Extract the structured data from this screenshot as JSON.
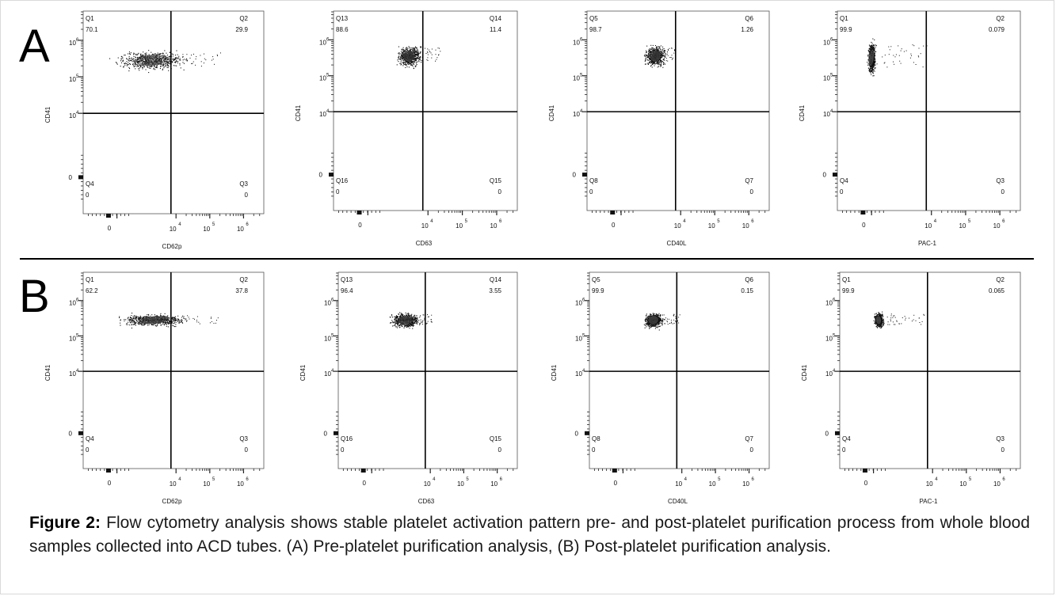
{
  "caption": {
    "label": "Figure 2:",
    "text": "Flow cytometry analysis shows stable platelet activation pattern pre- and post-platelet purification process from whole blood samples collected into ACD tubes. (A) Pre-platelet purification analysis, (B) Post-platelet purification analysis."
  },
  "rows": [
    {
      "label": "A"
    },
    {
      "label": "B"
    }
  ],
  "chart_data": [
    {
      "type": "scatter",
      "panel": "A",
      "xlabel": "CD62p",
      "ylabel": "CD41",
      "x_gate": 3.6,
      "y_gate": 3.75,
      "yticks": [
        "0",
        "10",
        "10",
        "10"
      ],
      "xticks": [
        "0",
        "10",
        "10",
        "10"
      ],
      "tick_exp": [
        "4",
        "5",
        "6"
      ],
      "quadrants": [
        {
          "name": "Q1",
          "value": "70.1"
        },
        {
          "name": "Q2",
          "value": "29.9"
        },
        {
          "name": "Q3",
          "value": "0"
        },
        {
          "name": "Q4",
          "value": "0"
        }
      ],
      "population": {
        "x": 3.0,
        "y": 5.2,
        "sx": 1.1,
        "sy": 0.15,
        "spread_x": 2.1
      }
    },
    {
      "type": "scatter",
      "panel": "A",
      "xlabel": "CD63",
      "ylabel": "CD41",
      "x_gate": 3.6,
      "y_gate": 3.75,
      "yticks": [
        "0",
        "10",
        "10",
        "10"
      ],
      "xticks": [
        "0",
        "10",
        "10",
        "10"
      ],
      "tick_exp": [
        "4",
        "5",
        "6"
      ],
      "quadrants": [
        {
          "name": "Q13",
          "value": "88.6"
        },
        {
          "name": "Q14",
          "value": "11.4"
        },
        {
          "name": "Q15",
          "value": "0"
        },
        {
          "name": "Q16",
          "value": "0"
        }
      ],
      "population": {
        "x": 3.2,
        "y": 5.3,
        "sx": 0.35,
        "sy": 0.16,
        "spread_x": 0.9
      }
    },
    {
      "type": "scatter",
      "panel": "A",
      "xlabel": "CD40L",
      "ylabel": "CD41",
      "x_gate": 3.6,
      "y_gate": 3.75,
      "yticks": [
        "0",
        "10",
        "10",
        "10"
      ],
      "xticks": [
        "0",
        "10",
        "10",
        "10"
      ],
      "tick_exp": [
        "4",
        "5",
        "6"
      ],
      "quadrants": [
        {
          "name": "Q5",
          "value": "98.7"
        },
        {
          "name": "Q6",
          "value": "1.26"
        },
        {
          "name": "Q7",
          "value": "0"
        },
        {
          "name": "Q8",
          "value": "0"
        }
      ],
      "population": {
        "x": 3.0,
        "y": 5.3,
        "sx": 0.32,
        "sy": 0.16,
        "spread_x": 0.6
      }
    },
    {
      "type": "scatter",
      "panel": "A",
      "xlabel": "PAC-1",
      "ylabel": "CD41",
      "x_gate": 3.6,
      "y_gate": 3.75,
      "yticks": [
        "0",
        "10",
        "10",
        "10"
      ],
      "xticks": [
        "0",
        "10",
        "10",
        "10"
      ],
      "tick_exp": [
        "4",
        "5",
        "6"
      ],
      "quadrants": [
        {
          "name": "Q1",
          "value": "99.9"
        },
        {
          "name": "Q2",
          "value": "0.079"
        },
        {
          "name": "Q3",
          "value": "0"
        },
        {
          "name": "Q4",
          "value": "0"
        }
      ],
      "population": {
        "x": 2.0,
        "y": 5.25,
        "sx": 0.12,
        "sy": 0.25,
        "spread_x": 1.7
      }
    },
    {
      "type": "scatter",
      "panel": "B",
      "xlabel": "CD62p",
      "ylabel": "CD41",
      "x_gate": 3.6,
      "y_gate": 3.75,
      "yticks": [
        "0",
        "10",
        "10",
        "10"
      ],
      "xticks": [
        "0",
        "10",
        "10",
        "10"
      ],
      "tick_exp": [
        "4",
        "5",
        "6"
      ],
      "quadrants": [
        {
          "name": "Q1",
          "value": "62.2"
        },
        {
          "name": "Q2",
          "value": "37.8"
        },
        {
          "name": "Q3",
          "value": "0"
        },
        {
          "name": "Q4",
          "value": "0"
        }
      ],
      "population": {
        "x": 3.1,
        "y": 5.2,
        "sx": 1.0,
        "sy": 0.1,
        "spread_x": 1.9
      }
    },
    {
      "type": "scatter",
      "panel": "B",
      "xlabel": "CD63",
      "ylabel": "CD41",
      "x_gate": 3.6,
      "y_gate": 3.75,
      "yticks": [
        "0",
        "10",
        "10",
        "10"
      ],
      "xticks": [
        "0",
        "10",
        "10",
        "10"
      ],
      "tick_exp": [
        "4",
        "5",
        "6"
      ],
      "quadrants": [
        {
          "name": "Q13",
          "value": "96.4"
        },
        {
          "name": "Q14",
          "value": "3.55"
        },
        {
          "name": "Q15",
          "value": "0"
        },
        {
          "name": "Q16",
          "value": "0"
        }
      ],
      "population": {
        "x": 3.0,
        "y": 5.2,
        "sx": 0.45,
        "sy": 0.12,
        "spread_x": 0.8
      }
    },
    {
      "type": "scatter",
      "panel": "B",
      "xlabel": "CD40L",
      "ylabel": "CD41",
      "x_gate": 3.6,
      "y_gate": 3.75,
      "yticks": [
        "0",
        "10",
        "10",
        "10"
      ],
      "xticks": [
        "0",
        "10",
        "10",
        "10"
      ],
      "tick_exp": [
        "4",
        "5",
        "6"
      ],
      "quadrants": [
        {
          "name": "Q5",
          "value": "99.9"
        },
        {
          "name": "Q6",
          "value": "0.15"
        },
        {
          "name": "Q7",
          "value": "0"
        },
        {
          "name": "Q8",
          "value": "0"
        }
      ],
      "population": {
        "x": 2.9,
        "y": 5.2,
        "sx": 0.3,
        "sy": 0.12,
        "spread_x": 0.8
      }
    },
    {
      "type": "scatter",
      "panel": "B",
      "xlabel": "PAC-1",
      "ylabel": "CD41",
      "x_gate": 3.6,
      "y_gate": 3.75,
      "yticks": [
        "0",
        "10",
        "10",
        "10"
      ],
      "xticks": [
        "0",
        "10",
        "10",
        "10"
      ],
      "tick_exp": [
        "4",
        "5",
        "6"
      ],
      "quadrants": [
        {
          "name": "Q1",
          "value": "99.9"
        },
        {
          "name": "Q2",
          "value": "0.065"
        },
        {
          "name": "Q3",
          "value": "0"
        },
        {
          "name": "Q4",
          "value": "0"
        }
      ],
      "population": {
        "x": 2.15,
        "y": 5.2,
        "sx": 0.14,
        "sy": 0.12,
        "spread_x": 1.4
      }
    }
  ]
}
